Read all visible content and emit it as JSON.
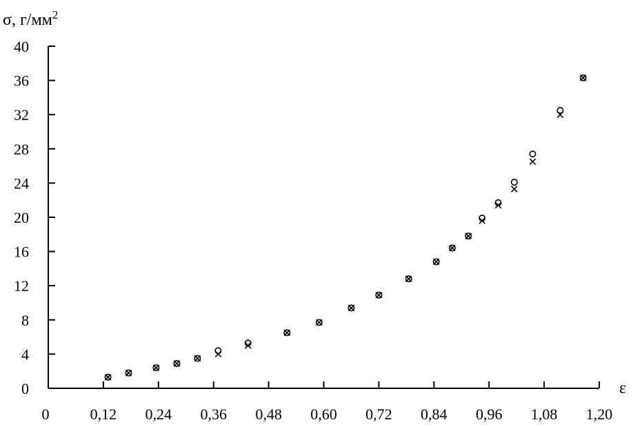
{
  "chart_data": {
    "type": "scatter",
    "title": "",
    "ylabel": "σ, г/мм",
    "ylabel_sup": "2",
    "xlabel": "ε",
    "xlim": [
      0,
      1.2
    ],
    "ylim": [
      0,
      40
    ],
    "x_ticks": [
      "0",
      "0,12",
      "0,24",
      "0,36",
      "0,48",
      "0,60",
      "0,72",
      "0,84",
      "0,96",
      "1,08",
      "1,20"
    ],
    "x_tick_values": [
      0,
      0.12,
      0.24,
      0.36,
      0.48,
      0.6,
      0.72,
      0.84,
      0.96,
      1.08,
      1.2
    ],
    "y_ticks": [
      "0",
      "4",
      "8",
      "12",
      "16",
      "20",
      "24",
      "28",
      "32",
      "36",
      "40"
    ],
    "y_tick_values": [
      0,
      4,
      8,
      12,
      16,
      20,
      24,
      28,
      32,
      36,
      40
    ],
    "grid": false,
    "legend": "none",
    "series": [
      {
        "marker": "circle",
        "x": [
          0.13,
          0.175,
          0.235,
          0.28,
          0.325,
          0.37,
          0.435,
          0.52,
          0.59,
          0.66,
          0.72,
          0.785,
          0.845,
          0.88,
          0.915,
          0.945,
          0.98,
          1.015,
          1.055,
          1.115,
          1.165
        ],
        "y": [
          1.3,
          1.8,
          2.4,
          2.9,
          3.5,
          4.4,
          5.3,
          6.5,
          7.7,
          9.4,
          10.9,
          12.8,
          14.8,
          16.4,
          17.8,
          19.9,
          21.7,
          24.1,
          27.4,
          32.5,
          36.3
        ]
      },
      {
        "marker": "cross",
        "x": [
          0.13,
          0.175,
          0.235,
          0.28,
          0.325,
          0.37,
          0.435,
          0.52,
          0.59,
          0.66,
          0.72,
          0.785,
          0.845,
          0.88,
          0.915,
          0.945,
          0.98,
          1.015,
          1.055,
          1.115,
          1.165
        ],
        "y": [
          1.3,
          1.8,
          2.4,
          2.9,
          3.5,
          4.0,
          5.0,
          6.5,
          7.7,
          9.4,
          10.9,
          12.8,
          14.8,
          16.4,
          17.8,
          19.6,
          21.4,
          23.3,
          26.5,
          32.0,
          36.3
        ]
      }
    ]
  }
}
